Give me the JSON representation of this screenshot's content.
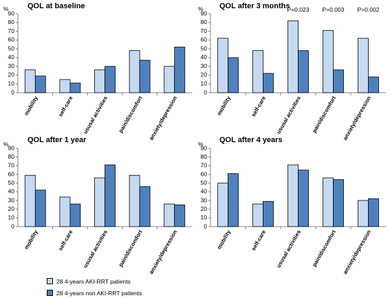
{
  "chart_data": [
    {
      "type": "bar",
      "title": "QOL at baseline",
      "ylabel": "%",
      "ylim": [
        0,
        90
      ],
      "yticks": [
        0,
        10,
        20,
        30,
        40,
        50,
        60,
        70,
        80,
        90
      ],
      "categories": [
        "mobility",
        "self-care",
        "ususal activities",
        "pain/discomfort",
        "anxiety/depression"
      ],
      "series": [
        {
          "name": "28 4-years AKI-RRT patients",
          "values": [
            26,
            15,
            26,
            48,
            30
          ]
        },
        {
          "name": "28 4-years non AKI-RRT patients",
          "values": [
            19,
            11,
            30,
            37,
            52
          ]
        }
      ],
      "annotations": [
        "",
        "",
        "",
        "",
        ""
      ],
      "grid": false,
      "legend": "none"
    },
    {
      "type": "bar",
      "title": "QOL after 3 months",
      "ylabel": "%",
      "ylim": [
        0,
        90
      ],
      "yticks": [
        0,
        10,
        20,
        30,
        40,
        50,
        60,
        70,
        80,
        90
      ],
      "categories": [
        "mobility",
        "self-care",
        "ususal activities",
        "pain/discomfort",
        "anxiety/depression"
      ],
      "series": [
        {
          "name": "28 4-years AKI-RRT patients",
          "values": [
            62,
            48,
            82,
            71,
            62
          ]
        },
        {
          "name": "28 4-years non AKI-RRT patients",
          "values": [
            40,
            22,
            48,
            26,
            18
          ]
        }
      ],
      "annotations": [
        "",
        "",
        "P=0.023",
        "P=0.003",
        "P=0.002"
      ],
      "grid": false,
      "legend": "none"
    },
    {
      "type": "bar",
      "title": "QOL after 1 year",
      "ylabel": "%",
      "ylim": [
        0,
        90
      ],
      "yticks": [
        0,
        10,
        20,
        30,
        40,
        50,
        60,
        70,
        80,
        90
      ],
      "categories": [
        "mobility",
        "self-care",
        "ususal activities",
        "pain/discomfort",
        "anxiety/depression"
      ],
      "series": [
        {
          "name": "28 4-years AKI-RRT patients",
          "values": [
            59,
            34,
            56,
            59,
            26
          ]
        },
        {
          "name": "28 4-years non AKI-RRT patients",
          "values": [
            42,
            26,
            71,
            46,
            25
          ]
        }
      ],
      "annotations": [
        "",
        "",
        "",
        "",
        ""
      ],
      "grid": false,
      "legend": "bottom-left"
    },
    {
      "type": "bar",
      "title": "QOL after 4 years",
      "ylabel": "%",
      "ylim": [
        0,
        90
      ],
      "yticks": [
        0,
        10,
        20,
        30,
        40,
        50,
        60,
        70,
        80,
        90
      ],
      "categories": [
        "mobility",
        "self-care",
        "ususal activities",
        "pain/discomfort",
        "anxiety/depression"
      ],
      "series": [
        {
          "name": "28 4-years AKI-RRT patients",
          "values": [
            50,
            26,
            71,
            56,
            30
          ]
        },
        {
          "name": "28 4-years non AKI-RRT patients",
          "values": [
            61,
            29,
            65,
            54,
            32
          ]
        }
      ],
      "annotations": [
        "",
        "",
        "",
        "",
        ""
      ],
      "grid": false,
      "legend": "none"
    }
  ],
  "legend": {
    "items": [
      {
        "label": "28 4-years AKI-RRT patients",
        "color": "#c5d9f1"
      },
      {
        "label": "28 4-years non AKI-RRT patients",
        "color": "#4f81bd"
      }
    ]
  },
  "colors": {
    "series_light": "#c5d9f1",
    "series_dark": "#4f81bd",
    "bar_outline": "#000000",
    "axis": "#808080"
  }
}
